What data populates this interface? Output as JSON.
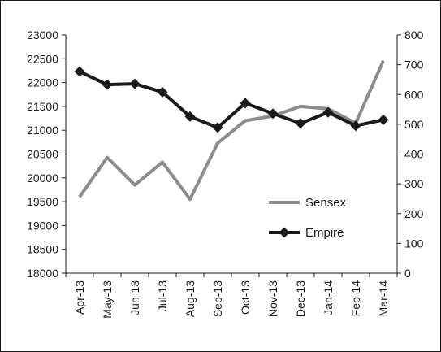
{
  "chart_data": {
    "type": "line",
    "title": "",
    "xlabel": "",
    "ylabel": "",
    "categories": [
      "Apr-13",
      "May-13",
      "Jun-13",
      "Jul-13",
      "Aug-13",
      "Sep-13",
      "Oct-13",
      "Nov-13",
      "Dec-13",
      "Jan-14",
      "Feb-14",
      "Mar-14"
    ],
    "left_axis": {
      "min": 18000,
      "max": 23000,
      "step": 500,
      "ticks": [
        "18000",
        "18500",
        "19000",
        "19500",
        "20000",
        "20500",
        "21000",
        "21500",
        "22000",
        "22500",
        "23000"
      ]
    },
    "right_axis": {
      "min": 0,
      "max": 800,
      "step": 100,
      "ticks": [
        "0",
        "100",
        "200",
        "300",
        "400",
        "500",
        "600",
        "700",
        "800"
      ]
    },
    "series": [
      {
        "name": "Sensex",
        "axis": "left",
        "color": "#8c8c8c",
        "marker": "none",
        "values": [
          19600,
          20430,
          19850,
          20330,
          19550,
          20730,
          21200,
          21300,
          21500,
          21450,
          21150,
          22460
        ]
      },
      {
        "name": "Empire",
        "axis": "right",
        "color": "#1a1a1a",
        "marker": "diamond",
        "values": [
          677,
          633,
          636,
          608,
          526,
          489,
          571,
          536,
          503,
          540,
          495,
          515
        ]
      }
    ],
    "legend_position": "inside-right",
    "grid": false
  }
}
